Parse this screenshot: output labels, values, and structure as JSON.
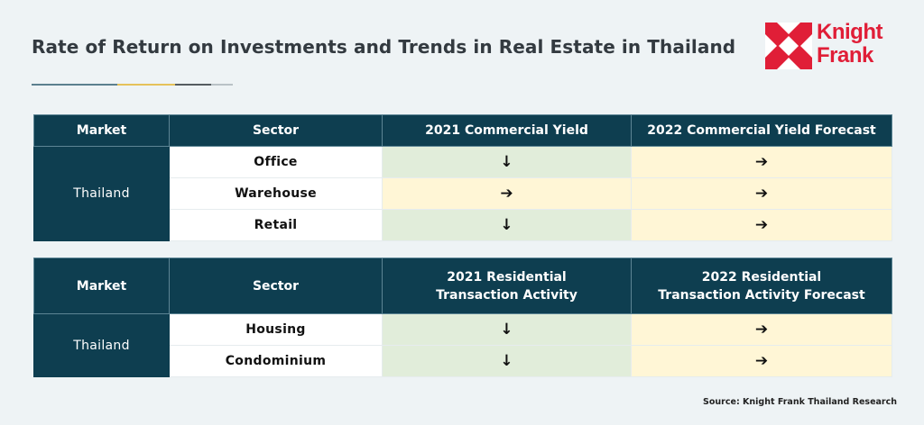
{
  "title": "Rate of Return on Investments and Trends in Real Estate in Thailand",
  "logo": {
    "line1": "Knight",
    "line2": "Frank",
    "color": "#e01e37"
  },
  "accent_colors": {
    "header": "#0e3e50",
    "green_cell": "#e1edda",
    "yellow_cell": "#fff6d6"
  },
  "commercial_table": {
    "headers": [
      "Market",
      "Sector",
      "2021 Commercial Yield",
      "2022 Commercial Yield Forecast"
    ],
    "market": "Thailand",
    "rows": [
      {
        "sector": "Office",
        "y2021": "↓",
        "y2022": "➔"
      },
      {
        "sector": "Warehouse",
        "y2021": "➔",
        "y2022": "➔"
      },
      {
        "sector": "Retail",
        "y2021": "↓",
        "y2022": "➔"
      }
    ]
  },
  "residential_table": {
    "headers": [
      "Market",
      "Sector",
      "2021 Residential",
      "Transaction Activity",
      "2022 Residential",
      "Transaction Activity Forecast"
    ],
    "market": "Thailand",
    "rows": [
      {
        "sector": "Housing",
        "y2021": "↓",
        "y2022": "➔"
      },
      {
        "sector": "Condominium",
        "y2021": "↓",
        "y2022": "➔"
      }
    ]
  },
  "source": "Source: Knight Frank Thailand Research"
}
